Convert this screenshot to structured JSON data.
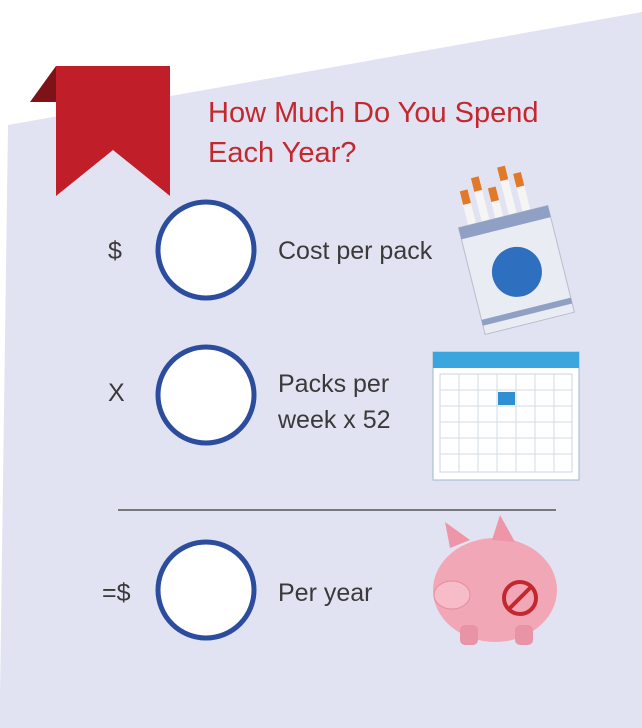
{
  "title": {
    "lines": [
      "How Much Do You Spend",
      "Each Year?"
    ]
  },
  "rows": [
    {
      "prefix": "$",
      "label": [
        "Cost per pack"
      ]
    },
    {
      "prefix": "X",
      "label": [
        "Packs per",
        "week x 52"
      ]
    },
    {
      "prefix": "=$",
      "label": [
        "Per year"
      ]
    }
  ]
}
